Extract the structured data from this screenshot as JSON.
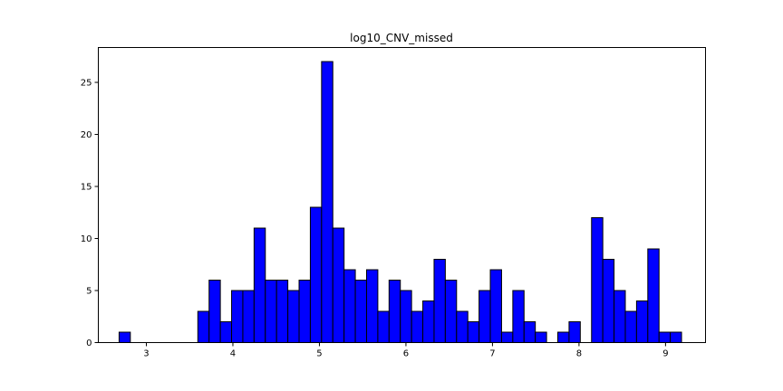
{
  "chart_data": {
    "type": "bar",
    "title": "log10_CNV_missed",
    "xlabel": "",
    "ylabel": "",
    "xlim": [
      2.445,
      9.462
    ],
    "ylim": [
      0,
      28.35
    ],
    "xticks": [
      3,
      4,
      5,
      6,
      7,
      8,
      9
    ],
    "yticks": [
      0,
      5,
      10,
      15,
      20,
      25
    ],
    "grid": false,
    "bar_color": "#0000ff",
    "edge_color": "#000000",
    "bin_start": 2.685,
    "bin_width": 0.13,
    "counts": [
      1,
      0,
      0,
      0,
      0,
      0,
      0,
      3,
      6,
      2,
      5,
      5,
      11,
      6,
      6,
      5,
      6,
      13,
      27,
      11,
      7,
      6,
      7,
      3,
      6,
      5,
      3,
      4,
      8,
      6,
      3,
      2,
      5,
      7,
      1,
      5,
      2,
      1,
      0,
      1,
      2,
      0,
      12,
      8,
      5,
      3,
      4,
      9,
      1,
      1
    ]
  }
}
